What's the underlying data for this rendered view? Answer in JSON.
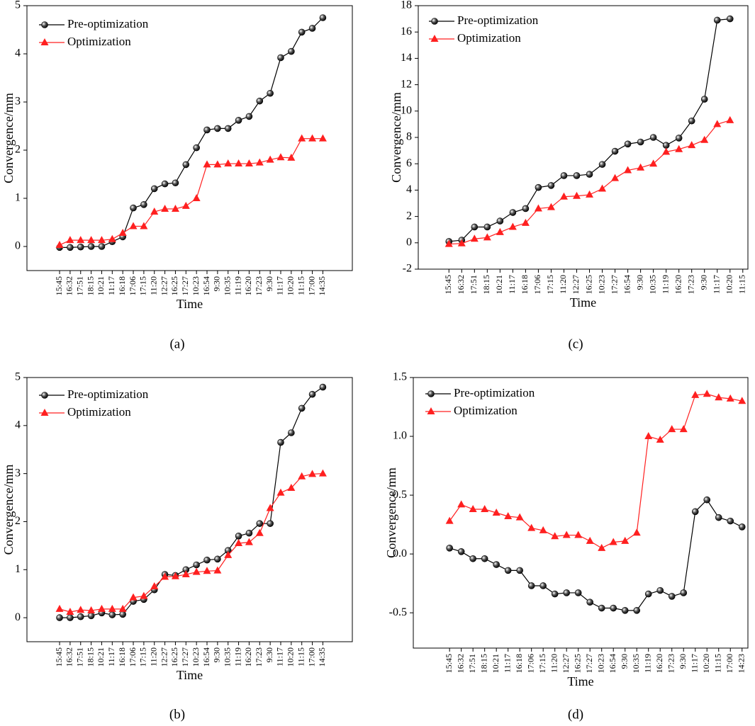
{
  "chart_data": [
    {
      "type": "line",
      "panel": "(a)",
      "x_label": "Time",
      "y_label": "Convergence/mm",
      "categories": [
        "15:45",
        "16:32",
        "17:51",
        "18:15",
        "10:21",
        "11:17",
        "16:18",
        "17:06",
        "17:15",
        "11:20",
        "12:27",
        "16:25",
        "17:27",
        "10:23",
        "16:54",
        "9:30",
        "10:35",
        "11:19",
        "16:20",
        "17:23",
        "9:30",
        "11:17",
        "10:20",
        "11:15",
        "17:00",
        "14:35"
      ],
      "series": [
        {
          "name": "Pre-optimization",
          "color": "#000000",
          "marker": "circle",
          "values": [
            -0.02,
            -0.02,
            -0.01,
            0,
            0,
            0.1,
            0.2,
            0.8,
            0.87,
            1.2,
            1.3,
            1.32,
            1.7,
            2.05,
            2.42,
            2.45,
            2.45,
            2.62,
            2.7,
            3.02,
            3.18,
            3.92,
            4.05,
            4.45,
            4.53,
            4.75
          ]
        },
        {
          "name": "Optimization",
          "color": "#ff2020",
          "marker": "triangle",
          "values": [
            0.03,
            0.13,
            0.13,
            0.13,
            0.13,
            0.15,
            0.28,
            0.42,
            0.42,
            0.72,
            0.78,
            0.78,
            0.84,
            1.0,
            1.7,
            1.7,
            1.72,
            1.72,
            1.72,
            1.74,
            1.8,
            1.85,
            1.84,
            2.24,
            2.24,
            2.24
          ]
        }
      ],
      "ylim": [
        -0.5,
        5
      ],
      "yticks": [
        0,
        1,
        2,
        3,
        4,
        5
      ],
      "legend": "upper left"
    },
    {
      "type": "line",
      "panel": "(b)",
      "x_label": "Time",
      "y_label": "Convergence/mm",
      "categories": [
        "15:45",
        "16:32",
        "17:51",
        "18:15",
        "10:21",
        "11:17",
        "16:18",
        "17:06",
        "17:15",
        "11:20",
        "12:27",
        "16:25",
        "17:27",
        "10:23",
        "16:54",
        "9:30",
        "10:35",
        "11:19",
        "16:20",
        "17:23",
        "9:30",
        "11:17",
        "10:20",
        "11:15",
        "17:00",
        "14:35"
      ],
      "series": [
        {
          "name": "Pre-optimization",
          "color": "#000000",
          "marker": "circle",
          "values": [
            0,
            0,
            0.02,
            0.04,
            0.1,
            0.06,
            0.07,
            0.34,
            0.38,
            0.58,
            0.9,
            0.88,
            1.0,
            1.1,
            1.2,
            1.22,
            1.4,
            1.7,
            1.76,
            1.96,
            1.96,
            3.65,
            3.85,
            4.36,
            4.65,
            4.8
          ]
        },
        {
          "name": "Optimization",
          "color": "#ff2020",
          "marker": "triangle",
          "values": [
            0.18,
            0.12,
            0.16,
            0.15,
            0.18,
            0.18,
            0.18,
            0.42,
            0.45,
            0.65,
            0.85,
            0.86,
            0.9,
            0.95,
            0.97,
            0.98,
            1.3,
            1.55,
            1.57,
            1.76,
            2.28,
            2.6,
            2.7,
            2.94,
            2.99,
            3.0
          ]
        }
      ],
      "ylim": [
        -0.5,
        5
      ],
      "yticks": [
        0,
        1,
        2,
        3,
        4,
        5
      ],
      "legend": "upper left"
    },
    {
      "type": "line",
      "panel": "(c)",
      "x_label": "Time",
      "y_label": "Convergence/mm",
      "categories": [
        "15:45",
        "16:32",
        "17:51",
        "18:15",
        "10:21",
        "11:17",
        "16:18",
        "17:06",
        "17:15",
        "11:20",
        "12:27",
        "16:25",
        "10:23",
        "17:27",
        "16:54",
        "9:30",
        "10:35",
        "11:19",
        "16:20",
        "17:23",
        "9:30",
        "11:17",
        "10:20",
        "11:15"
      ],
      "series": [
        {
          "name": "Pre-optimization",
          "color": "#000000",
          "marker": "circle",
          "values": [
            0.1,
            0.2,
            1.2,
            1.2,
            1.65,
            2.3,
            2.6,
            4.2,
            4.35,
            5.1,
            5.1,
            5.2,
            5.95,
            6.95,
            7.5,
            7.65,
            8.0,
            7.4,
            7.95,
            9.25,
            10.9,
            16.9,
            17.0,
            null
          ]
        },
        {
          "name": "Optimization",
          "color": "#ff2020",
          "marker": "triangle",
          "values": [
            -0.1,
            -0.05,
            0.3,
            0.4,
            0.8,
            1.2,
            1.5,
            2.6,
            2.7,
            3.5,
            3.55,
            3.65,
            4.1,
            4.9,
            5.5,
            5.7,
            6.0,
            6.9,
            7.1,
            7.4,
            7.8,
            9.0,
            9.3,
            null
          ]
        }
      ],
      "ylim": [
        -2,
        18
      ],
      "yticks": [
        -2,
        0,
        2,
        4,
        6,
        8,
        10,
        12,
        14,
        16,
        18
      ],
      "legend": "upper left"
    },
    {
      "type": "line",
      "panel": "(d)",
      "x_label": "Time",
      "y_label": "Convergence/mm",
      "categories": [
        "15:45",
        "16:32",
        "17:51",
        "18:15",
        "10:21",
        "11:17",
        "16:18",
        "17:06",
        "17:15",
        "11:20",
        "12:27",
        "16:25",
        "17:27",
        "10:23",
        "16:54",
        "9:30",
        "10:35",
        "11:19",
        "16:20",
        "17:23",
        "9:30",
        "11:17",
        "10:20",
        "11:15",
        "17:00",
        "14:23"
      ],
      "series": [
        {
          "name": "Pre-optimization",
          "color": "#000000",
          "marker": "circle",
          "values": [
            0.05,
            0.02,
            -0.04,
            -0.04,
            -0.09,
            -0.14,
            -0.14,
            -0.27,
            -0.27,
            -0.34,
            -0.33,
            -0.33,
            -0.41,
            -0.46,
            -0.46,
            -0.48,
            -0.48,
            -0.34,
            -0.31,
            -0.36,
            -0.33,
            0.36,
            0.46,
            0.31,
            0.28,
            0.23
          ]
        },
        {
          "name": "Optimization",
          "color": "#ff2020",
          "marker": "triangle",
          "values": [
            0.28,
            0.42,
            0.38,
            0.38,
            0.35,
            0.32,
            0.31,
            0.22,
            0.2,
            0.15,
            0.16,
            0.16,
            0.11,
            0.05,
            0.1,
            0.11,
            0.18,
            1.0,
            0.97,
            1.06,
            1.06,
            1.35,
            1.36,
            1.33,
            1.32,
            1.3
          ]
        }
      ],
      "ylim": [
        -0.8,
        1.5
      ],
      "yticks": [
        -0.5,
        {
          "value": 0,
          "label": "0.0"
        },
        0.5,
        {
          "value": 1,
          "label": "1.0"
        },
        1.5
      ],
      "legend": "upper left"
    }
  ]
}
